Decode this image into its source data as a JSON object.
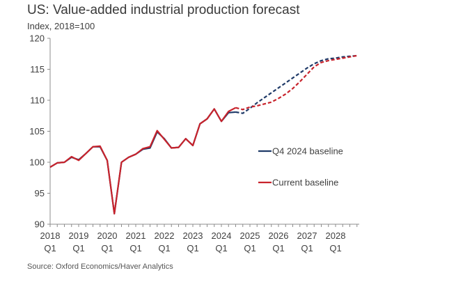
{
  "chart_data": {
    "type": "line",
    "title": "US: Value-added industrial production forecast",
    "subtitle": "Index, 2018=100",
    "source": "Source: Oxford Economics/Haver Analytics",
    "ylim": [
      90,
      120
    ],
    "yticks": [
      90,
      95,
      100,
      105,
      110,
      115,
      120
    ],
    "x_ticks": [
      {
        "year": "2018",
        "quarter": "Q1"
      },
      {
        "year": "2019",
        "quarter": "Q1"
      },
      {
        "year": "2020",
        "quarter": "Q1"
      },
      {
        "year": "2021",
        "quarter": "Q1"
      },
      {
        "year": "2022",
        "quarter": "Q1"
      },
      {
        "year": "2023",
        "quarter": "Q1"
      },
      {
        "year": "2024",
        "quarter": "Q1"
      },
      {
        "year": "2025",
        "quarter": "Q1"
      },
      {
        "year": "2026",
        "quarter": "Q1"
      },
      {
        "year": "2027",
        "quarter": "Q1"
      },
      {
        "year": "2028",
        "quarter": "Q1"
      }
    ],
    "x": [
      "2018Q1",
      "2018Q2",
      "2018Q3",
      "2018Q4",
      "2019Q1",
      "2019Q2",
      "2019Q3",
      "2019Q4",
      "2020Q1",
      "2020Q2",
      "2020Q3",
      "2020Q4",
      "2021Q1",
      "2021Q2",
      "2021Q3",
      "2021Q4",
      "2022Q1",
      "2022Q2",
      "2022Q3",
      "2022Q4",
      "2023Q1",
      "2023Q2",
      "2023Q3",
      "2023Q4",
      "2024Q1",
      "2024Q2",
      "2024Q3",
      "2024Q4",
      "2025Q1",
      "2025Q2",
      "2025Q3",
      "2025Q4",
      "2026Q1",
      "2026Q2",
      "2026Q3",
      "2026Q4",
      "2027Q1",
      "2027Q2",
      "2027Q3",
      "2027Q4",
      "2028Q1",
      "2028Q2",
      "2028Q3",
      "2028Q4"
    ],
    "history_end_index": 26,
    "grid": false,
    "legend_position": "right",
    "series": [
      {
        "name": "Q4 2024 baseline",
        "color": "#1f3a68",
        "values": [
          99.2,
          99.9,
          100.0,
          100.8,
          100.4,
          101.4,
          102.5,
          102.5,
          100.3,
          91.7,
          100.0,
          100.8,
          101.3,
          102.1,
          102.3,
          104.9,
          103.8,
          102.3,
          102.4,
          103.8,
          102.7,
          106.2,
          107.0,
          108.6,
          106.6,
          108.0,
          108.1,
          107.9,
          108.7,
          109.6,
          110.4,
          111.2,
          112.0,
          112.8,
          113.6,
          114.4,
          115.2,
          115.9,
          116.4,
          116.7,
          116.8,
          117.0,
          117.1,
          117.2
        ]
      },
      {
        "name": "Current baseline",
        "color": "#c8232c",
        "values": [
          99.2,
          99.9,
          100.0,
          100.9,
          100.3,
          101.4,
          102.5,
          102.6,
          100.3,
          91.7,
          100.0,
          100.8,
          101.3,
          102.2,
          102.5,
          105.1,
          103.7,
          102.3,
          102.4,
          103.8,
          102.7,
          106.2,
          107.0,
          108.6,
          106.6,
          108.2,
          108.8,
          108.5,
          108.9,
          109.1,
          109.4,
          109.7,
          110.3,
          111.0,
          111.9,
          113.0,
          114.2,
          115.4,
          116.1,
          116.4,
          116.6,
          116.8,
          117.0,
          117.2
        ]
      }
    ]
  }
}
